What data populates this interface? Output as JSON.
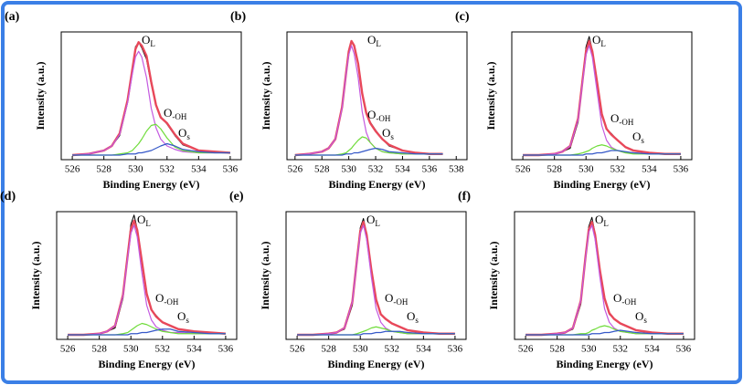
{
  "chart_data": [
    {
      "type": "line",
      "panel_label": "(a)",
      "xlabel": "Binding Energy (eV)",
      "ylabel": "Intensity (a.u.)",
      "xlim": [
        525.3,
        536.7
      ],
      "xticks": [
        526,
        528,
        530,
        532,
        534,
        536
      ],
      "ylim": [
        0,
        112
      ],
      "x": [
        526,
        527,
        528,
        528.5,
        529,
        529.5,
        529.8,
        530,
        530.2,
        530.4,
        530.7,
        531,
        531.3,
        531.6,
        532,
        532.5,
        533,
        534,
        535,
        536
      ],
      "series": [
        {
          "color": "#000000",
          "values": [
            4,
            5,
            8,
            12,
            21,
            50,
            80,
            99,
            103,
            98,
            88,
            66,
            48,
            38,
            31,
            21,
            13,
            8,
            7,
            6
          ]
        },
        {
          "color": "#e8485a",
          "values": [
            4,
            5,
            8,
            12,
            23,
            52,
            79,
            97,
            103,
            100,
            91,
            68,
            48,
            37,
            32,
            22,
            14,
            8,
            7,
            6
          ]
        },
        {
          "color": "#c45ae0",
          "values": [
            4,
            5,
            8,
            12,
            22,
            50,
            75,
            90,
            95,
            90,
            72,
            45,
            28,
            18,
            12,
            9,
            7,
            6,
            6,
            6
          ]
        },
        {
          "color": "#6fdc3a",
          "values": [
            4,
            4,
            4,
            4,
            5,
            6,
            8,
            11,
            14,
            18,
            25,
            30,
            31,
            27,
            19,
            11,
            8,
            6,
            6,
            6
          ]
        },
        {
          "color": "#3558c8",
          "values": [
            4,
            4,
            4,
            4,
            4,
            5,
            5,
            5,
            6,
            6,
            7,
            8,
            10,
            12,
            14,
            12,
            9,
            7,
            6,
            6
          ]
        }
      ],
      "annotations": [
        {
          "text": "O",
          "sub": "L"
        },
        {
          "text": "O",
          "sub": "-OH"
        },
        {
          "text": "O",
          "sub": "s"
        }
      ]
    },
    {
      "type": "line",
      "panel_label": "(b)",
      "xlabel": "Binding Energy (eV)",
      "ylabel": "Intensity (a.u.)",
      "xlim": [
        525.4,
        538.8
      ],
      "xticks": [
        526,
        528,
        530,
        532,
        534,
        536,
        538
      ],
      "ylim": [
        0,
        112
      ],
      "x": [
        526,
        527,
        528,
        528.5,
        529,
        529.5,
        529.8,
        530,
        530.2,
        530.4,
        530.7,
        531,
        531.3,
        531.6,
        532,
        532.5,
        533,
        534,
        535,
        536,
        537
      ],
      "series": [
        {
          "color": "#000000",
          "values": [
            4,
            5,
            7,
            10,
            18,
            45,
            76,
            96,
            104,
            99,
            83,
            58,
            41,
            33,
            26,
            18,
            12,
            8,
            6,
            5,
            5
          ]
        },
        {
          "color": "#e8485a",
          "values": [
            4,
            5,
            7,
            10,
            18,
            46,
            76,
            95,
            104,
            100,
            84,
            58,
            41,
            32,
            25,
            18,
            13,
            8,
            6,
            5,
            5
          ]
        },
        {
          "color": "#c45ae0",
          "values": [
            4,
            5,
            7,
            10,
            18,
            45,
            75,
            92,
            100,
            93,
            72,
            42,
            24,
            15,
            10,
            7,
            6,
            5,
            5,
            5,
            5
          ]
        },
        {
          "color": "#6fdc3a",
          "values": [
            4,
            4,
            4,
            4,
            4,
            5,
            6,
            8,
            10,
            13,
            17,
            20,
            19,
            15,
            10,
            7,
            6,
            5,
            5,
            5,
            5
          ]
        },
        {
          "color": "#3558c8",
          "values": [
            4,
            4,
            4,
            4,
            4,
            4,
            5,
            5,
            5,
            6,
            6,
            7,
            8,
            9,
            10,
            9,
            7,
            6,
            5,
            5,
            5
          ]
        }
      ],
      "annotations": [
        {
          "text": "O",
          "sub": "L"
        },
        {
          "text": "O",
          "sub": "-OH"
        },
        {
          "text": "O",
          "sub": "s"
        }
      ]
    },
    {
      "type": "line",
      "panel_label": "(c)",
      "xlabel": "Binding Energy (eV)",
      "ylabel": "Intensity (a.u.)",
      "xlim": [
        525.3,
        536.7
      ],
      "xticks": [
        526,
        528,
        530,
        532,
        534,
        536
      ],
      "ylim": [
        0,
        112
      ],
      "x": [
        526,
        527,
        528,
        528.5,
        529,
        529.5,
        529.8,
        530,
        530.2,
        530.4,
        530.7,
        531,
        531.3,
        531.6,
        532,
        532.5,
        533,
        534,
        535,
        536
      ],
      "series": [
        {
          "color": "#000000",
          "values": [
            4,
            4,
            5,
            7,
            10,
            33,
            72,
            99,
            108,
            96,
            66,
            38,
            27,
            23,
            17,
            11,
            8,
            6,
            5,
            5
          ]
        },
        {
          "color": "#e8485a",
          "values": [
            4,
            4,
            5,
            7,
            12,
            36,
            72,
            95,
            104,
            95,
            68,
            40,
            27,
            22,
            17,
            11,
            8,
            6,
            5,
            5
          ]
        },
        {
          "color": "#c45ae0",
          "values": [
            4,
            4,
            5,
            7,
            12,
            35,
            70,
            92,
            100,
            90,
            60,
            30,
            17,
            11,
            8,
            6,
            6,
            5,
            5,
            5
          ]
        },
        {
          "color": "#6fdc3a",
          "values": [
            4,
            4,
            4,
            4,
            4,
            5,
            6,
            7,
            8,
            10,
            12,
            13,
            12,
            10,
            8,
            6,
            5,
            5,
            5,
            5
          ]
        },
        {
          "color": "#3558c8",
          "values": [
            4,
            4,
            4,
            4,
            4,
            4,
            4,
            5,
            5,
            5,
            6,
            6,
            7,
            8,
            8,
            7,
            6,
            5,
            5,
            5
          ]
        }
      ],
      "annotations": [
        {
          "text": "O",
          "sub": "L"
        },
        {
          "text": "O",
          "sub": "-OH"
        },
        {
          "text": "O",
          "sub": "s"
        }
      ]
    },
    {
      "type": "line",
      "panel_label": "(d)",
      "xlabel": "Binding Energy (eV)",
      "ylabel": "Intensity (a.u.)",
      "xlim": [
        525.3,
        536.7
      ],
      "xticks": [
        526,
        528,
        530,
        532,
        534,
        536
      ],
      "ylim": [
        0,
        112
      ],
      "x": [
        526,
        527,
        528,
        528.5,
        529,
        529.5,
        529.8,
        530,
        530.2,
        530.4,
        530.7,
        531,
        531.3,
        531.6,
        532,
        532.5,
        533,
        534,
        535,
        536
      ],
      "series": [
        {
          "color": "#000000",
          "values": [
            4,
            4,
            5,
            7,
            10,
            36,
            75,
            101,
            109,
            97,
            66,
            39,
            26,
            21,
            15,
            12,
            9,
            7,
            6,
            5
          ]
        },
        {
          "color": "#e8485a",
          "values": [
            4,
            4,
            5,
            7,
            12,
            39,
            74,
            97,
            104,
            96,
            68,
            40,
            26,
            20,
            15,
            12,
            9,
            7,
            6,
            5
          ]
        },
        {
          "color": "#c45ae0",
          "values": [
            4,
            4,
            5,
            7,
            12,
            38,
            72,
            93,
            100,
            90,
            58,
            30,
            17,
            11,
            8,
            6,
            6,
            5,
            5,
            5
          ]
        },
        {
          "color": "#6fdc3a",
          "values": [
            4,
            4,
            4,
            4,
            4,
            5,
            6,
            8,
            10,
            12,
            14,
            13,
            11,
            9,
            7,
            6,
            5,
            5,
            5,
            5
          ]
        },
        {
          "color": "#3558c8",
          "values": [
            4,
            4,
            4,
            4,
            4,
            4,
            4,
            5,
            5,
            5,
            6,
            6,
            7,
            8,
            9,
            9,
            7,
            6,
            5,
            5
          ]
        }
      ],
      "annotations": [
        {
          "text": "O",
          "sub": "L"
        },
        {
          "text": "O",
          "sub": "-OH"
        },
        {
          "text": "O",
          "sub": "s"
        }
      ]
    },
    {
      "type": "line",
      "panel_label": "(e)",
      "xlabel": "Binding Energy (eV)",
      "ylabel": "Intensity (a.u.)",
      "xlim": [
        525.3,
        536.7
      ],
      "xticks": [
        526,
        528,
        530,
        532,
        534,
        536
      ],
      "ylim": [
        0,
        112
      ],
      "x": [
        526,
        527,
        528,
        528.5,
        529,
        529.5,
        529.8,
        530,
        530.2,
        530.4,
        530.7,
        531,
        531.3,
        531.6,
        532,
        532.5,
        533,
        534,
        535,
        536
      ],
      "series": [
        {
          "color": "#000000",
          "values": [
            4,
            4,
            5,
            6,
            9,
            30,
            72,
            98,
            106,
            93,
            60,
            35,
            22,
            18,
            14,
            11,
            8,
            6,
            5,
            5
          ]
        },
        {
          "color": "#e8485a",
          "values": [
            4,
            4,
            5,
            6,
            10,
            33,
            71,
            95,
            103,
            92,
            61,
            35,
            22,
            18,
            14,
            11,
            8,
            6,
            5,
            5
          ]
        },
        {
          "color": "#c45ae0",
          "values": [
            4,
            4,
            5,
            6,
            10,
            33,
            70,
            93,
            100,
            88,
            55,
            27,
            15,
            10,
            7,
            6,
            5,
            5,
            5,
            5
          ]
        },
        {
          "color": "#6fdc3a",
          "values": [
            4,
            4,
            4,
            4,
            4,
            4,
            5,
            6,
            7,
            8,
            10,
            11,
            10,
            9,
            7,
            6,
            5,
            5,
            5,
            5
          ]
        },
        {
          "color": "#3558c8",
          "values": [
            4,
            4,
            4,
            4,
            4,
            4,
            4,
            4,
            5,
            5,
            5,
            6,
            6,
            7,
            7,
            7,
            6,
            5,
            5,
            5
          ]
        }
      ],
      "annotations": [
        {
          "text": "O",
          "sub": "L"
        },
        {
          "text": "O",
          "sub": "-OH"
        },
        {
          "text": "O",
          "sub": "s"
        }
      ]
    },
    {
      "type": "line",
      "panel_label": "(f)",
      "xlabel": "Binding Energy (eV)",
      "ylabel": "Intensity (a.u.)",
      "xlim": [
        525.3,
        536.7
      ],
      "xticks": [
        526,
        528,
        530,
        532,
        534,
        536
      ],
      "ylim": [
        0,
        112
      ],
      "x": [
        526,
        527,
        528,
        528.5,
        529,
        529.5,
        529.8,
        530,
        530.2,
        530.4,
        530.7,
        531,
        531.3,
        531.6,
        532,
        532.5,
        533,
        534,
        535,
        536
      ],
      "series": [
        {
          "color": "#000000",
          "values": [
            4,
            4,
            5,
            6,
            9,
            31,
            74,
            99,
            107,
            93,
            60,
            35,
            22,
            18,
            14,
            11,
            8,
            6,
            5,
            5
          ]
        },
        {
          "color": "#e8485a",
          "values": [
            4,
            4,
            5,
            6,
            10,
            34,
            73,
            96,
            103,
            92,
            61,
            36,
            23,
            18,
            14,
            11,
            8,
            6,
            5,
            5
          ]
        },
        {
          "color": "#c45ae0",
          "values": [
            4,
            4,
            5,
            6,
            10,
            34,
            72,
            94,
            100,
            88,
            55,
            27,
            15,
            10,
            7,
            6,
            5,
            5,
            5,
            5
          ]
        },
        {
          "color": "#6fdc3a",
          "values": [
            4,
            4,
            4,
            4,
            4,
            5,
            5,
            6,
            8,
            9,
            11,
            12,
            11,
            9,
            7,
            6,
            5,
            5,
            5,
            5
          ]
        },
        {
          "color": "#3558c8",
          "values": [
            4,
            4,
            4,
            4,
            4,
            4,
            4,
            4,
            5,
            5,
            5,
            6,
            6,
            7,
            8,
            7,
            6,
            5,
            5,
            5
          ]
        }
      ],
      "annotations": [
        {
          "text": "O",
          "sub": "L"
        },
        {
          "text": "O",
          "sub": "-OH"
        },
        {
          "text": "O",
          "sub": "s"
        }
      ]
    }
  ]
}
